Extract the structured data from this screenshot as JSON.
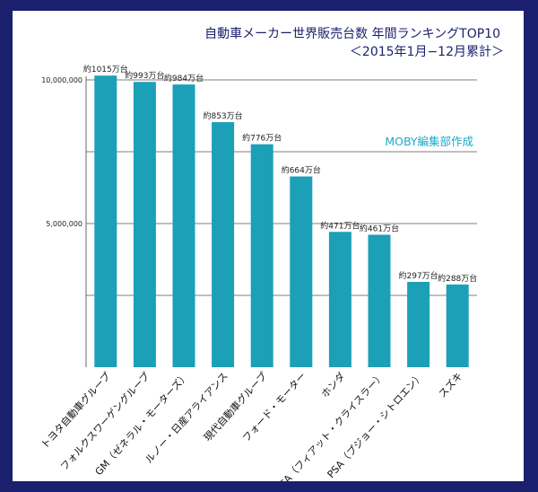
{
  "chart_data": {
    "type": "bar",
    "title": "自動車メーカー世界販売台数 年間ランキングTOP10",
    "subtitle": "＜2015年1月−12月累計＞",
    "credit": "MOBY編集部作成",
    "categories": [
      "トヨタ自動車グループ",
      "フォルクスワーゲングループ",
      "GM（ゼネラル・モーターズ）",
      "ルノー・日産アライアンス",
      "現代自動車グループ",
      "フォード・モーター",
      "ホンダ",
      "FCA（フィアット・クライスラー）",
      "PSA（プジョー・シトロエン）",
      "スズキ"
    ],
    "values": [
      10150000,
      9930000,
      9840000,
      8530000,
      7760000,
      6640000,
      4710000,
      4610000,
      2970000,
      2880000
    ],
    "data_labels": [
      "約1015万台",
      "約993万台",
      "約984万台",
      "約853万台",
      "約776万台",
      "約664万台",
      "約471万台",
      "約461万台",
      "約297万台",
      "約288万台"
    ],
    "yticks": [
      {
        "value": 5000000,
        "label": "5,000,000"
      },
      {
        "value": 10000000,
        "label": "10,000,000"
      }
    ],
    "gridlines": [
      2500000,
      5000000,
      7500000,
      10000000
    ],
    "ylim": [
      0,
      11000000
    ],
    "grid": true,
    "legend": "none",
    "colors": {
      "bar": "#1ba0b8",
      "grid": "#555555",
      "title": "#1a1f6e",
      "credit": "#1ba8c8",
      "frame": "#1a1f6e"
    }
  }
}
